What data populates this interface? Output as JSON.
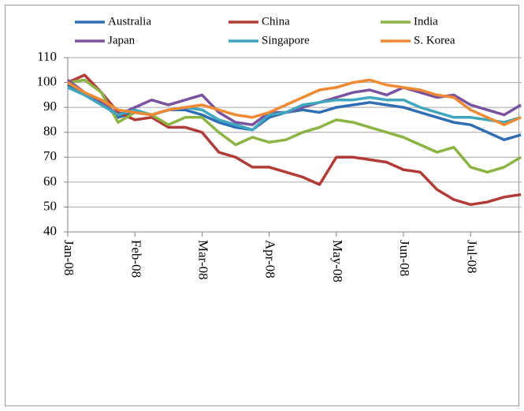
{
  "chart_data": {
    "type": "line",
    "categories": [
      "Jan-08",
      null,
      null,
      null,
      "Feb-08",
      null,
      null,
      null,
      "Mar-08",
      null,
      null,
      null,
      "Apr-08",
      null,
      null,
      null,
      "May-08",
      null,
      null,
      null,
      "Jun-08",
      null,
      null,
      null,
      "Jul-08",
      null,
      null,
      null
    ],
    "series": [
      {
        "name": "Australia",
        "color": "#2f6db5",
        "values": [
          99,
          96,
          92,
          86,
          88,
          87,
          89,
          89,
          87,
          84,
          82,
          81,
          86,
          88,
          89,
          88,
          90,
          91,
          92,
          91,
          90,
          88,
          86,
          84,
          83,
          80,
          77,
          79
        ]
      },
      {
        "name": "China",
        "color": "#b33a36",
        "values": [
          100,
          103,
          96,
          88,
          85,
          86,
          82,
          82,
          80,
          72,
          70,
          66,
          66,
          64,
          62,
          59,
          70,
          70,
          69,
          68,
          65,
          64,
          57,
          53,
          51,
          52,
          54,
          55
        ]
      },
      {
        "name": "India",
        "color": "#8cb443",
        "values": [
          100,
          101,
          96,
          84,
          88,
          87,
          83,
          86,
          86,
          80,
          75,
          78,
          76,
          77,
          80,
          82,
          85,
          84,
          82,
          80,
          78,
          75,
          72,
          74,
          66,
          64,
          66,
          70
        ]
      },
      {
        "name": "Japan",
        "color": "#7a52a0",
        "values": [
          101,
          96,
          92,
          87,
          90,
          93,
          91,
          93,
          95,
          88,
          84,
          83,
          88,
          88,
          90,
          92,
          94,
          96,
          97,
          95,
          98,
          96,
          94,
          95,
          91,
          89,
          87,
          91
        ]
      },
      {
        "name": "Singapore",
        "color": "#3ea7bf",
        "values": [
          98,
          95,
          91,
          87,
          89,
          87,
          89,
          90,
          89,
          85,
          83,
          81,
          87,
          88,
          91,
          92,
          93,
          93,
          94,
          93,
          93,
          90,
          88,
          86,
          86,
          85,
          84,
          86
        ]
      },
      {
        "name": "S. Korea",
        "color": "#ef8a33",
        "values": [
          100,
          96,
          93,
          89,
          88,
          87,
          89,
          90,
          91,
          89,
          87,
          86,
          88,
          91,
          94,
          97,
          98,
          100,
          101,
          99,
          98,
          97,
          95,
          94,
          89,
          86,
          83,
          86
        ]
      }
    ],
    "ylim": [
      40,
      110
    ],
    "yticks": [
      40,
      50,
      60,
      70,
      80,
      90,
      100,
      110
    ],
    "grid": true
  }
}
